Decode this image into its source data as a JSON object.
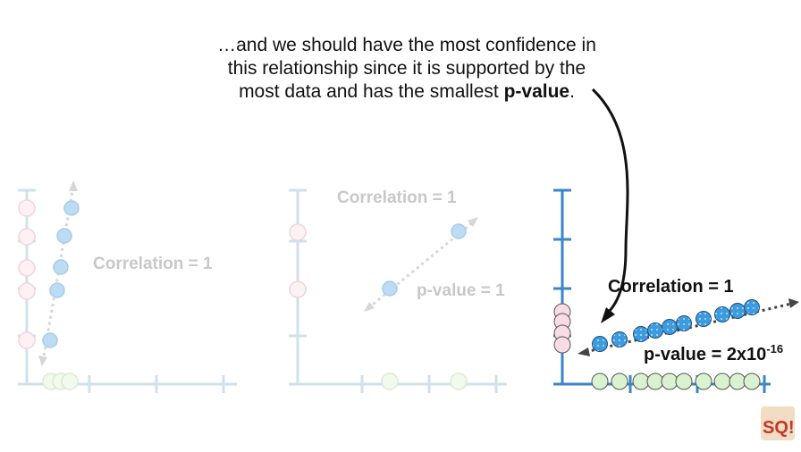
{
  "caption": {
    "line1": "…and we should have the most confidence in",
    "line2": "this relationship since it is supported by the",
    "line3_pre": "most data and has the smallest ",
    "line3_bold": "p-value",
    "line3_post": "."
  },
  "panels": [
    {
      "correlation_label": "Correlation = 1",
      "pvalue_label": ""
    },
    {
      "correlation_label": "Correlation = 1",
      "pvalue_label": "p-value = 1"
    },
    {
      "correlation_label": "Correlation = 1",
      "pvalue_label": "p-value = 2x10",
      "pvalue_exponent": "-16"
    }
  ],
  "colors": {
    "faded_axis": "#cfe0ee",
    "faded_text": "#c8c8c8",
    "axis": "#3a86c8",
    "point_blue": "#3d9be0",
    "point_pink": "#f8dbe4",
    "point_green": "#d9f2d0",
    "arrow": "#111111"
  },
  "logo": {
    "text": "SQ!",
    "icon": "statquest-logo-icon"
  }
}
